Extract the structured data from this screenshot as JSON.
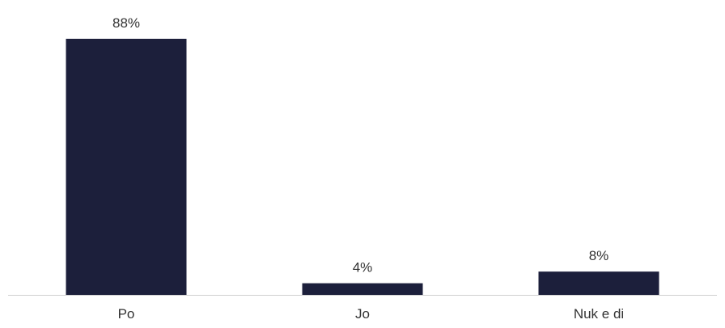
{
  "chart_data": {
    "type": "bar",
    "categories": [
      "Po",
      "Jo",
      "Nuk e di"
    ],
    "values": [
      88,
      4,
      8
    ],
    "value_labels": [
      "88%",
      "4%",
      "8%"
    ],
    "unit": "%",
    "ylim": [
      0,
      88
    ],
    "grid": false,
    "legend": "none",
    "bar_color": "#1c1f3b",
    "axis_color": "#d0d0d0",
    "text_color": "#333333"
  }
}
